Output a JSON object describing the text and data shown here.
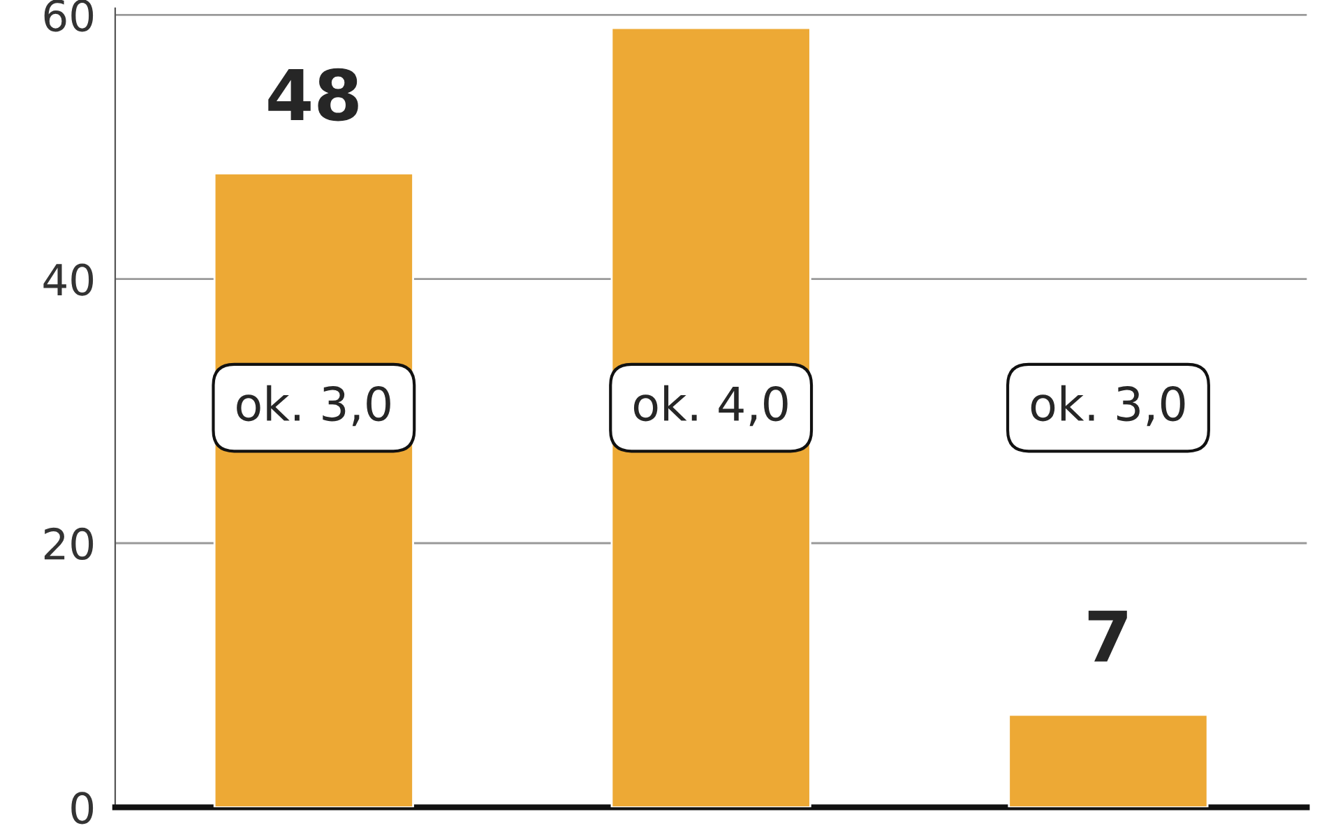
{
  "chart_data": {
    "type": "bar",
    "categories": [
      null,
      null,
      null
    ],
    "values": [
      48,
      59,
      7
    ],
    "value_labels": [
      "48",
      null,
      "7"
    ],
    "color": "#eda935",
    "ylim": [
      0,
      60.5
    ],
    "yticks": [
      0,
      20,
      40,
      60
    ],
    "grid": "y",
    "annotations": [
      "ok. 3,0",
      "ok. 4,0",
      "ok. 3,0"
    ]
  }
}
